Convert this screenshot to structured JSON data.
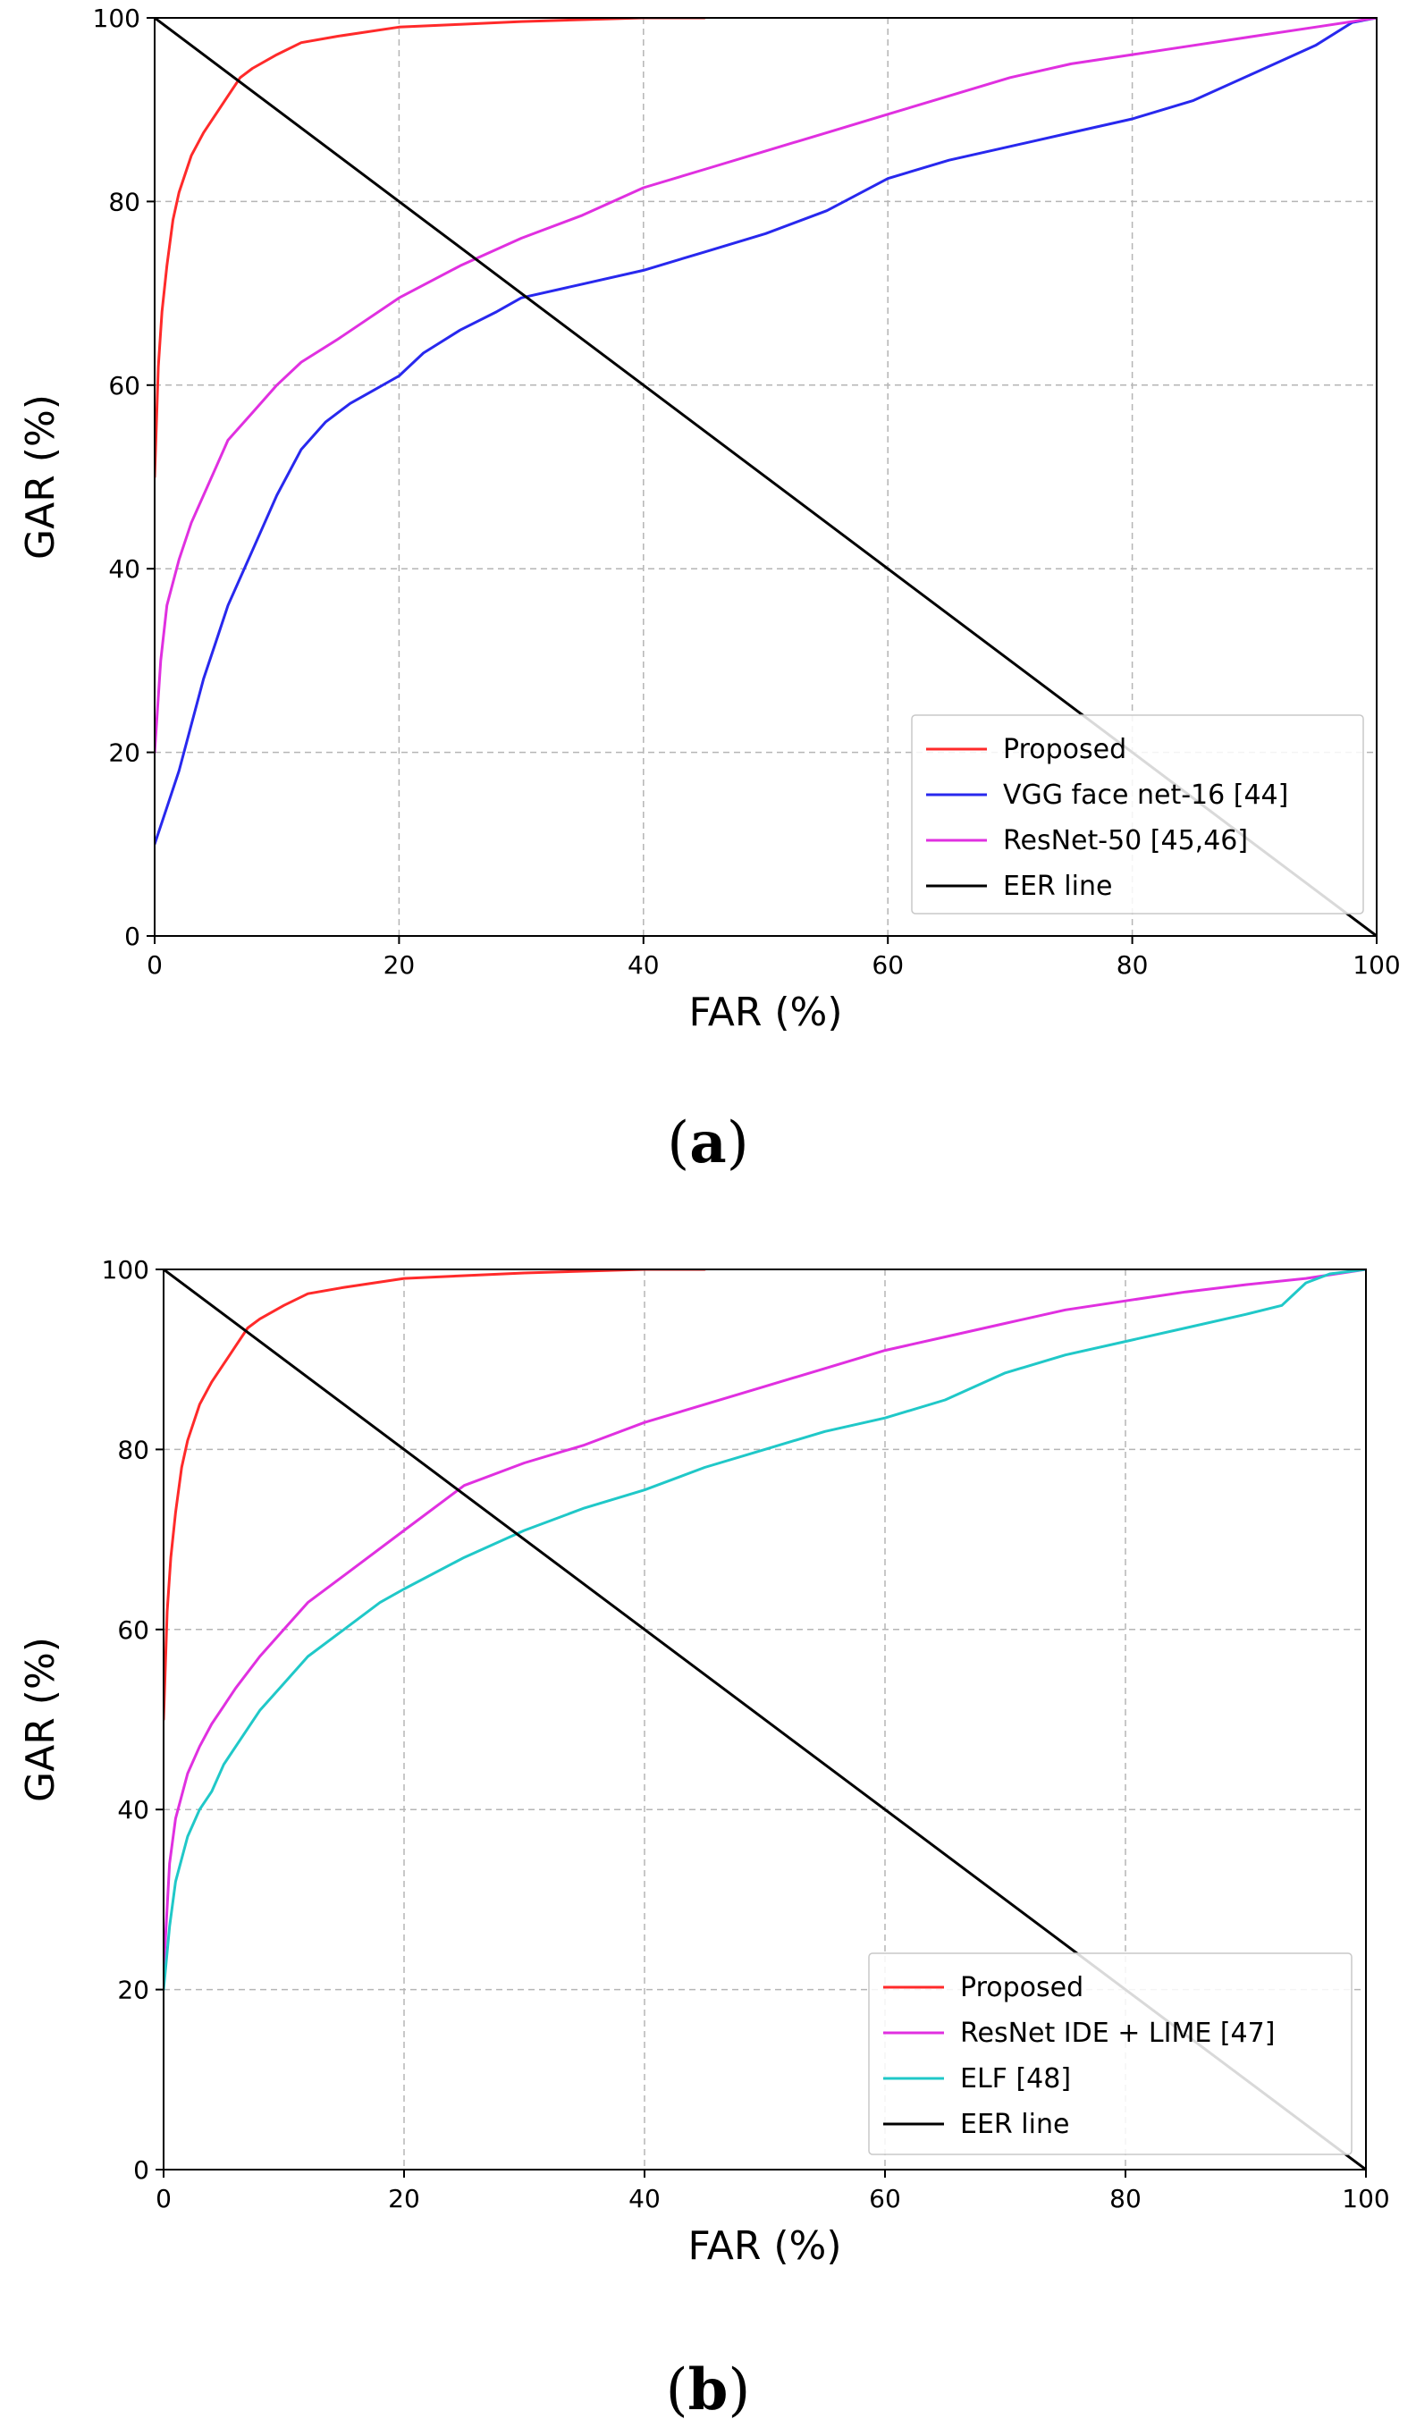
{
  "chart_data": [
    {
      "type": "line",
      "panel_label": "(a)",
      "panel_letter": "a",
      "xlabel": "FAR (%)",
      "ylabel": "GAR (%)",
      "xlim": [
        0,
        100
      ],
      "ylim": [
        0,
        100
      ],
      "xticks": [
        0,
        20,
        40,
        60,
        80,
        100
      ],
      "yticks": [
        0,
        20,
        40,
        60,
        80,
        100
      ],
      "grid": true,
      "legend_position": "bottom-right",
      "series": [
        {
          "name": "Proposed",
          "color": "#ff2a2a",
          "x": [
            0,
            0.3,
            0.6,
            1,
            1.5,
            2,
            3,
            4,
            5,
            6,
            7,
            8,
            10,
            12,
            15,
            20,
            25,
            30,
            40,
            45
          ],
          "y": [
            50,
            62,
            68,
            73,
            78,
            81,
            85,
            87.5,
            89.5,
            91.5,
            93.5,
            94.5,
            96,
            97.3,
            98,
            99,
            99.3,
            99.6,
            100,
            100
          ]
        },
        {
          "name": "VGG face net-16 [44]",
          "color": "#2828ee",
          "x": [
            0,
            1,
            2,
            3,
            4,
            5,
            6,
            8,
            10,
            12,
            14,
            16,
            18,
            20,
            22,
            25,
            28,
            30,
            35,
            40,
            45,
            50,
            55,
            60,
            65,
            70,
            75,
            80,
            85,
            90,
            95,
            98,
            100
          ],
          "y": [
            10,
            14,
            18,
            23,
            28,
            32,
            36,
            42,
            48,
            53,
            56,
            58,
            59.5,
            61,
            63.5,
            66,
            68,
            69.5,
            71,
            72.5,
            74.5,
            76.5,
            79,
            82.5,
            84.5,
            86,
            87.5,
            89,
            91,
            94,
            97,
            99.5,
            100
          ]
        },
        {
          "name": "ResNet-50 [45,46]",
          "color": "#e030e0",
          "x": [
            0,
            0.5,
            1,
            2,
            3,
            4,
            5,
            6,
            8,
            10,
            12,
            15,
            20,
            25,
            30,
            35,
            40,
            45,
            50,
            55,
            60,
            65,
            70,
            75,
            80,
            85,
            90,
            95,
            100
          ],
          "y": [
            20,
            30,
            36,
            41,
            45,
            48,
            51,
            54,
            57,
            60,
            62.5,
            65,
            69.5,
            73,
            76,
            78.5,
            81.5,
            83.5,
            85.5,
            87.5,
            89.5,
            91.5,
            93.5,
            95,
            96,
            97,
            98,
            99,
            100
          ]
        },
        {
          "name": "EER line",
          "color": "#000000",
          "x": [
            0,
            100
          ],
          "y": [
            100,
            0
          ]
        }
      ]
    },
    {
      "type": "line",
      "panel_label": "(b)",
      "panel_letter": "b",
      "xlabel": "FAR (%)",
      "ylabel": "GAR (%)",
      "xlim": [
        0,
        100
      ],
      "ylim": [
        0,
        100
      ],
      "xticks": [
        0,
        20,
        40,
        60,
        80,
        100
      ],
      "yticks": [
        0,
        20,
        40,
        60,
        80,
        100
      ],
      "grid": true,
      "legend_position": "bottom-right",
      "series": [
        {
          "name": "Proposed",
          "color": "#ff2a2a",
          "x": [
            0,
            0.3,
            0.6,
            1,
            1.5,
            2,
            3,
            4,
            5,
            6,
            7,
            8,
            10,
            12,
            15,
            20,
            25,
            30,
            40,
            45
          ],
          "y": [
            50,
            62,
            68,
            73,
            78,
            81,
            85,
            87.5,
            89.5,
            91.5,
            93.5,
            94.5,
            96,
            97.3,
            98,
            99,
            99.3,
            99.6,
            100,
            100
          ]
        },
        {
          "name": "ResNet IDE + LIME [47]",
          "color": "#e030e0",
          "x": [
            0,
            0.5,
            1,
            2,
            3,
            4,
            5,
            6,
            8,
            10,
            12,
            15,
            20,
            25,
            30,
            35,
            40,
            45,
            50,
            55,
            60,
            65,
            70,
            75,
            80,
            85,
            90,
            95,
            100
          ],
          "y": [
            22,
            34,
            39,
            44,
            47,
            49.5,
            51.5,
            53.5,
            57,
            60,
            63,
            66,
            71,
            76,
            78.5,
            80.5,
            83,
            85,
            87,
            89,
            91,
            92.5,
            94,
            95.5,
            96.5,
            97.5,
            98.3,
            99,
            100
          ]
        },
        {
          "name": "ELF [48]",
          "color": "#20c8c8",
          "x": [
            0,
            0.5,
            1,
            2,
            3,
            4,
            5,
            6,
            8,
            10,
            12,
            15,
            18,
            20,
            25,
            30,
            35,
            40,
            45,
            50,
            55,
            60,
            65,
            70,
            75,
            80,
            85,
            90,
            93,
            95,
            97,
            100
          ],
          "y": [
            20,
            27,
            32,
            37,
            40,
            42,
            45,
            47,
            51,
            54,
            57,
            60,
            63,
            64.5,
            68,
            71,
            73.5,
            75.5,
            78,
            80,
            82,
            83.5,
            85.5,
            88.5,
            90.5,
            92,
            93.5,
            95,
            96,
            98.5,
            99.5,
            100
          ]
        },
        {
          "name": "EER line",
          "color": "#000000",
          "x": [
            0,
            100
          ],
          "y": [
            100,
            0
          ]
        }
      ]
    }
  ]
}
